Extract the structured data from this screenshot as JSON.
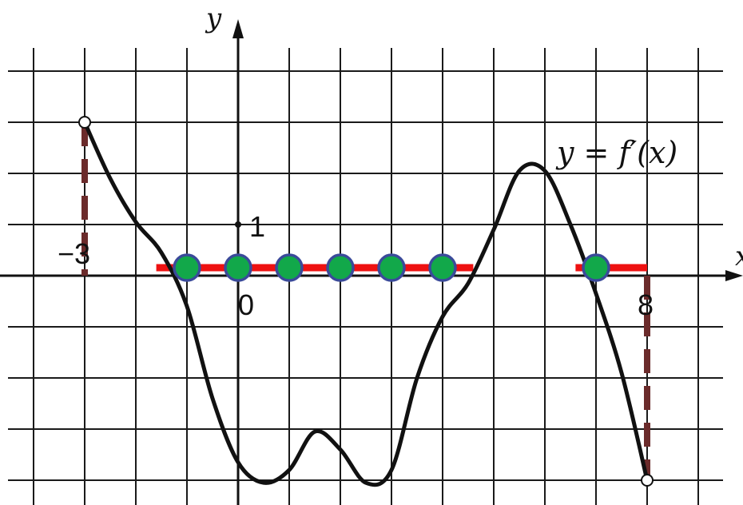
{
  "labels": {
    "y_axis": "y",
    "x_axis": "x",
    "function": "y = f′(x)",
    "tick_neg3": "−3",
    "tick_0": "0",
    "tick_1": "1",
    "tick_8": "8"
  },
  "colors": {
    "grid": "#1a1a1a",
    "curve": "#111111",
    "segment": "#ee1111",
    "point_fill": "#12a84a",
    "point_stroke": "#3a4a9a",
    "boundary_dash": "#6b2b2b"
  },
  "chart_data": {
    "type": "line",
    "x_domain": [
      -3,
      8
    ],
    "curve_points": [
      [
        -3,
        3
      ],
      [
        -2.5,
        1.9
      ],
      [
        -2,
        1.05
      ],
      [
        -1.5,
        0.45
      ],
      [
        -1,
        -0.6
      ],
      [
        -0.5,
        -2.4
      ],
      [
        0,
        -3.65
      ],
      [
        0.5,
        -4.05
      ],
      [
        1,
        -3.8
      ],
      [
        1.5,
        -3.05
      ],
      [
        2,
        -3.4
      ],
      [
        2.5,
        -4.05
      ],
      [
        3,
        -3.8
      ],
      [
        3.5,
        -2.0
      ],
      [
        4,
        -0.8
      ],
      [
        4.5,
        -0.15
      ],
      [
        5,
        0.9
      ],
      [
        5.5,
        2.05
      ],
      [
        6,
        2.05
      ],
      [
        6.5,
        1.0
      ],
      [
        7,
        -0.35
      ],
      [
        7.5,
        -1.9
      ],
      [
        8,
        -4
      ]
    ],
    "endpoint_markers": [
      [
        -3,
        3
      ],
      [
        8,
        -4
      ]
    ],
    "nonneg_segments": [
      [
        -1.6,
        4.6
      ],
      [
        6.6,
        8
      ]
    ],
    "marked_points": [
      -1,
      0,
      1,
      2,
      3,
      4,
      7
    ],
    "boundary_lines": [
      {
        "x": -3,
        "y_from": 3,
        "y_to": 0
      },
      {
        "x": 8,
        "y_from": 0,
        "y_to": -4
      }
    ]
  }
}
